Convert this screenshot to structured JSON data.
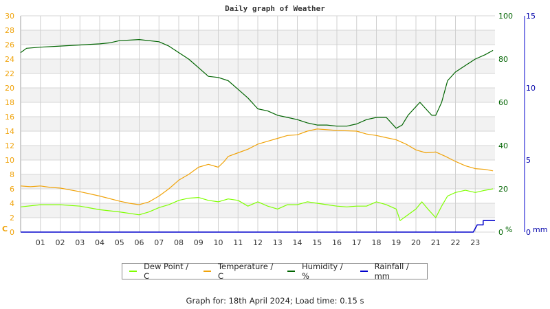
{
  "chart_data": {
    "type": "line",
    "title": "Daily graph of Weather",
    "xlabel": "",
    "x_ticks": [
      "01",
      "02",
      "03",
      "04",
      "05",
      "06",
      "07",
      "08",
      "09",
      "10",
      "11",
      "12",
      "13",
      "14",
      "15",
      "16",
      "17",
      "18",
      "19",
      "20",
      "21",
      "22",
      "23"
    ],
    "xlim": [
      0,
      24
    ],
    "axes": {
      "left": {
        "unit": "C",
        "ticks": [
          0,
          2,
          4,
          6,
          8,
          10,
          12,
          14,
          16,
          18,
          20,
          22,
          24,
          26,
          28,
          30
        ],
        "range": [
          0,
          30
        ],
        "color": "#f0a30a"
      },
      "right_humidity": {
        "unit": "%",
        "ticks": [
          0,
          20,
          40,
          60,
          80,
          100
        ],
        "range": [
          0,
          100
        ],
        "color": "#006400"
      },
      "right_rain": {
        "unit": "mm",
        "ticks": [
          0,
          5,
          10,
          15
        ],
        "range": [
          0,
          15
        ],
        "color": "#0000aa"
      }
    },
    "grid": true,
    "legend_position": "bottom",
    "series": [
      {
        "name": "Dew Point / C",
        "axis": "left",
        "color": "#7fff00",
        "x": [
          0,
          1,
          2,
          3,
          4,
          5,
          6,
          6.5,
          7,
          7.5,
          8,
          8.5,
          9,
          9.5,
          10,
          10.5,
          11,
          11.5,
          12,
          12.5,
          13,
          13.5,
          14,
          14.5,
          15,
          15.5,
          16,
          16.5,
          17,
          17.5,
          18,
          18.5,
          19,
          19.2,
          19.5,
          20,
          20.3,
          20.6,
          21,
          21.3,
          21.6,
          22,
          22.5,
          23,
          23.5,
          23.9
        ],
        "values": [
          3.5,
          3.8,
          3.8,
          3.6,
          3.1,
          2.8,
          2.4,
          2.8,
          3.4,
          3.8,
          4.4,
          4.7,
          4.8,
          4.4,
          4.2,
          4.6,
          4.4,
          3.6,
          4.2,
          3.6,
          3.2,
          3.8,
          3.8,
          4.2,
          4.0,
          3.8,
          3.6,
          3.5,
          3.6,
          3.6,
          4.2,
          3.8,
          3.2,
          1.6,
          2.2,
          3.2,
          4.2,
          3.2,
          2.0,
          3.6,
          5.0,
          5.5,
          5.8,
          5.5,
          5.8,
          6.0
        ]
      },
      {
        "name": "Temperature / C",
        "axis": "left",
        "color": "#f0a30a",
        "x": [
          0,
          0.5,
          1,
          1.5,
          2,
          3,
          4,
          5,
          5.5,
          6,
          6.5,
          7,
          7.5,
          8,
          8.5,
          9,
          9.5,
          10,
          10.3,
          10.5,
          11,
          11.5,
          12,
          12.5,
          13,
          13.5,
          14,
          14.5,
          15,
          15.5,
          16,
          17,
          17.5,
          18,
          18.5,
          19,
          19.5,
          20,
          20.5,
          21,
          21.5,
          22,
          22.5,
          23,
          23.5,
          23.9
        ],
        "values": [
          6.4,
          6.3,
          6.4,
          6.2,
          6.1,
          5.6,
          5.0,
          4.3,
          4.0,
          3.8,
          4.2,
          5.0,
          6.0,
          7.2,
          8.0,
          9.0,
          9.4,
          9.0,
          9.8,
          10.5,
          11.0,
          11.5,
          12.2,
          12.6,
          13.0,
          13.4,
          13.5,
          14.0,
          14.3,
          14.2,
          14.1,
          14.0,
          13.6,
          13.4,
          13.1,
          12.8,
          12.2,
          11.4,
          11.0,
          11.1,
          10.5,
          9.8,
          9.2,
          8.8,
          8.7,
          8.5
        ]
      },
      {
        "name": "Humidity / %",
        "axis": "right_humidity",
        "color": "#006400",
        "x": [
          0,
          0.3,
          1,
          2,
          3,
          4,
          4.5,
          5,
          6,
          7,
          7.5,
          8,
          8.5,
          9,
          9.5,
          10,
          10.5,
          11,
          11.5,
          12,
          12.5,
          13,
          13.5,
          14,
          14.5,
          15,
          15.5,
          16,
          16.5,
          17,
          17.5,
          18,
          18.5,
          19,
          19.3,
          19.6,
          20,
          20.2,
          20.5,
          20.8,
          21,
          21.3,
          21.6,
          22,
          22.5,
          23,
          23.5,
          23.9
        ],
        "values": [
          83,
          85,
          85.5,
          86,
          86.5,
          87,
          87.5,
          88.5,
          89,
          88,
          86,
          83,
          80,
          76,
          72,
          71.5,
          70,
          66,
          62,
          57,
          56,
          54,
          53,
          52,
          50.5,
          49.5,
          49.5,
          49,
          49,
          50,
          52,
          53,
          53,
          48,
          49.5,
          54,
          58,
          60,
          57,
          54,
          54,
          60,
          70,
          74,
          77,
          80,
          82,
          84
        ]
      },
      {
        "name": "Rainfall / mm",
        "axis": "right_rain",
        "color": "#0000cc",
        "x": [
          0,
          22.9,
          23.1,
          23.1,
          23.4,
          23.4,
          24
        ],
        "values": [
          0,
          0,
          0.5,
          0.5,
          0.5,
          0.8,
          0.8
        ]
      }
    ]
  },
  "labels": {
    "title": "Daily graph of Weather",
    "left_unit": "C",
    "humidity_unit": "%",
    "rain_unit": "mm"
  },
  "legend": [
    {
      "label": "Dew Point / C",
      "color": "#7fff00"
    },
    {
      "label": "Temperature / C",
      "color": "#f0a30a"
    },
    {
      "label": "Humidity / %",
      "color": "#006400"
    },
    {
      "label": "Rainfall / mm",
      "color": "#0000cc"
    }
  ],
  "footer": "Graph for: 18th April 2024; Load time: 0.15 s"
}
